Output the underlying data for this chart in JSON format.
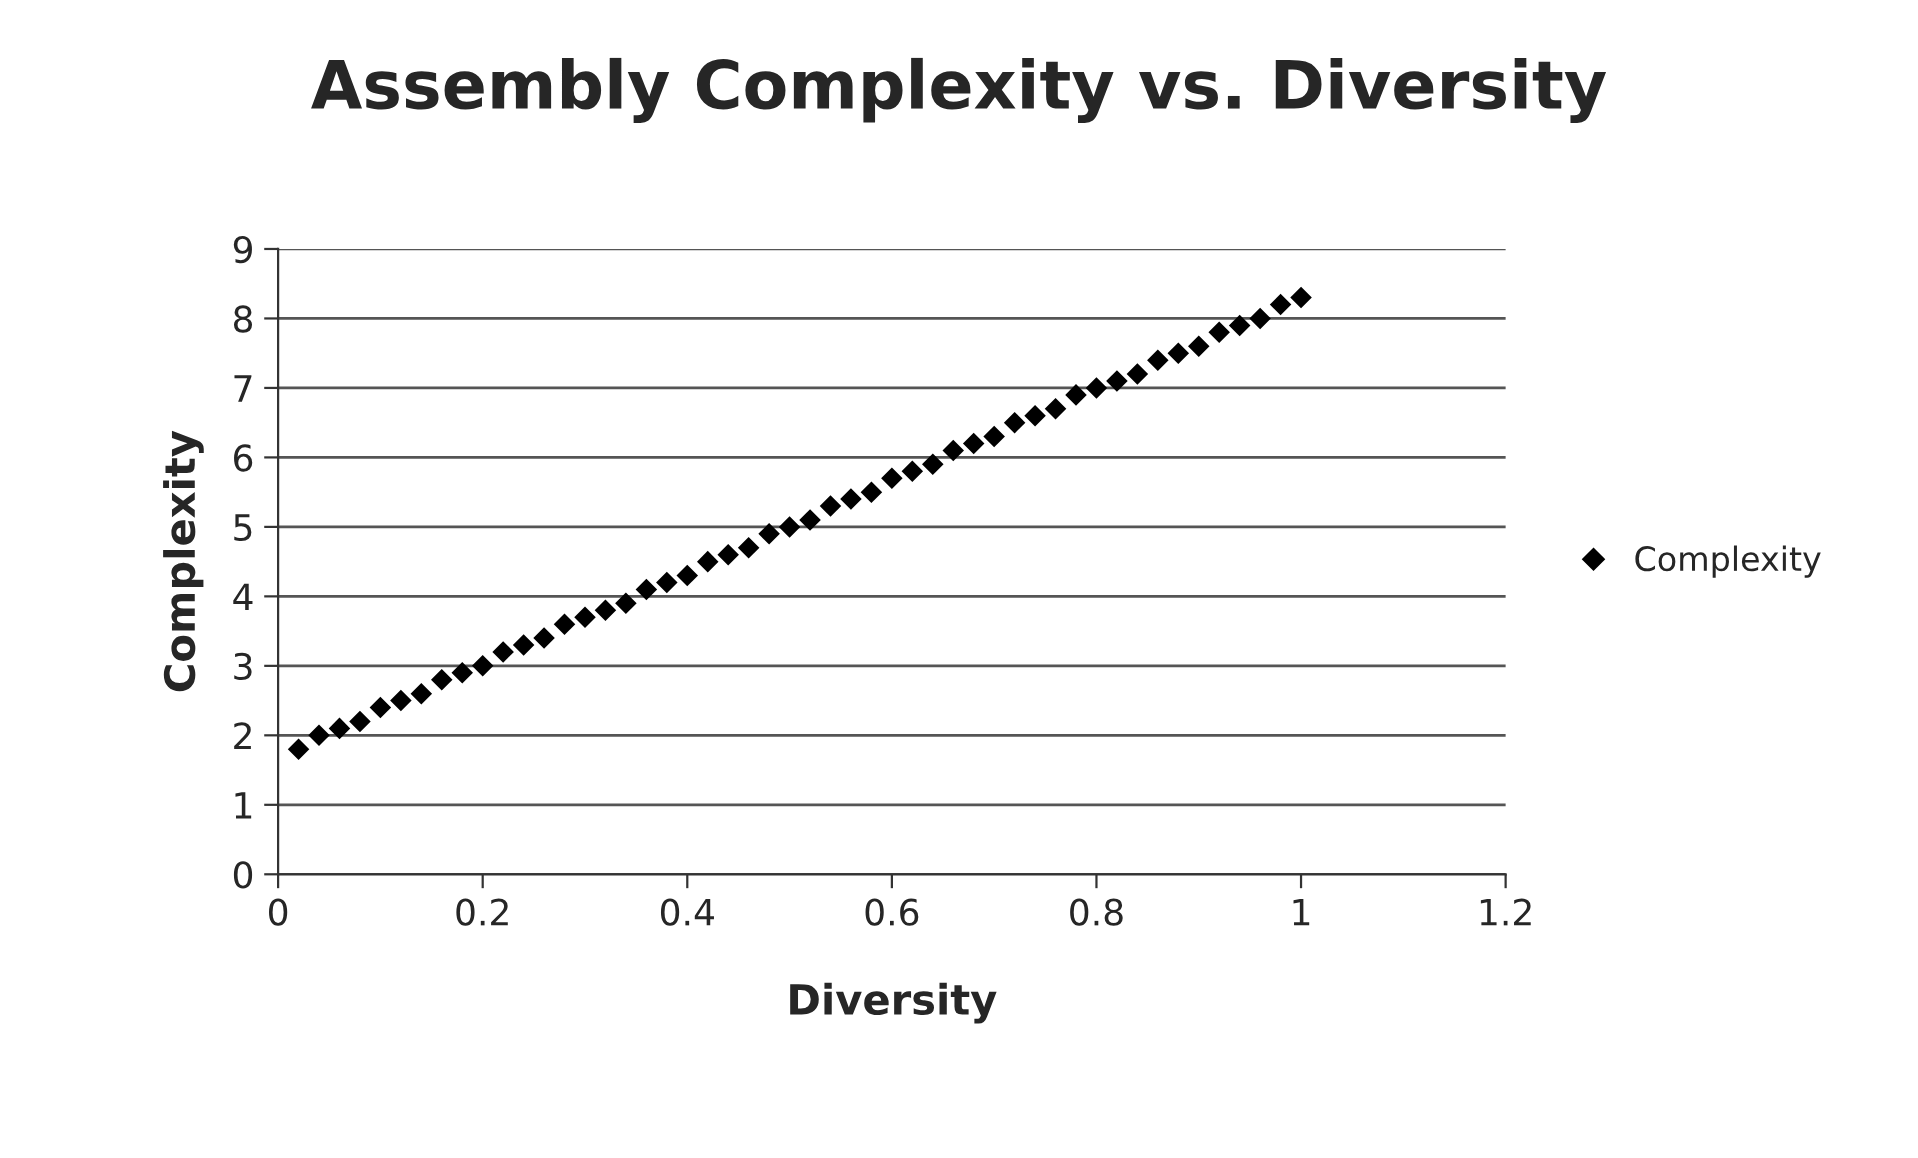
{
  "chart_data": {
    "type": "scatter",
    "title": "Assembly Complexity vs. Diversity",
    "xlabel": "Diversity",
    "ylabel": "Complexity",
    "series": [
      {
        "name": "Complexity",
        "color": "#000000",
        "x": [
          0.02,
          0.04,
          0.06,
          0.08,
          0.1,
          0.12,
          0.14,
          0.16,
          0.18,
          0.2,
          0.22,
          0.24,
          0.26,
          0.28,
          0.3,
          0.32,
          0.34,
          0.36,
          0.38,
          0.4,
          0.42,
          0.44,
          0.46,
          0.48,
          0.5,
          0.52,
          0.54,
          0.56,
          0.58,
          0.6,
          0.62,
          0.64,
          0.66,
          0.68,
          0.7,
          0.72,
          0.74,
          0.76,
          0.78,
          0.8,
          0.82,
          0.84,
          0.86,
          0.88,
          0.9,
          0.92,
          0.94,
          0.96,
          0.98,
          1.0
        ],
        "values": [
          1.8,
          2.0,
          2.1,
          2.2,
          2.4,
          2.5,
          2.6,
          2.8,
          2.9,
          3.0,
          3.2,
          3.3,
          3.4,
          3.6,
          3.7,
          3.8,
          3.9,
          4.1,
          4.2,
          4.3,
          4.5,
          4.6,
          4.7,
          4.9,
          5.0,
          5.1,
          5.3,
          5.4,
          5.5,
          5.7,
          5.8,
          5.9,
          6.1,
          6.2,
          6.3,
          6.5,
          6.6,
          6.7,
          6.9,
          7.0,
          7.1,
          7.2,
          7.4,
          7.5,
          7.6,
          7.8,
          7.9,
          8.0,
          8.2,
          8.3
        ]
      }
    ],
    "xlim": [
      0,
      1.2
    ],
    "xticks": [
      0,
      0.2,
      0.4,
      0.6,
      0.8,
      1,
      1.2
    ],
    "ylim": [
      0,
      9
    ],
    "yticks": [
      0,
      1,
      2,
      3,
      4,
      5,
      6,
      7,
      8,
      9
    ],
    "grid": "y",
    "legend": "right",
    "marker": "diamond"
  }
}
